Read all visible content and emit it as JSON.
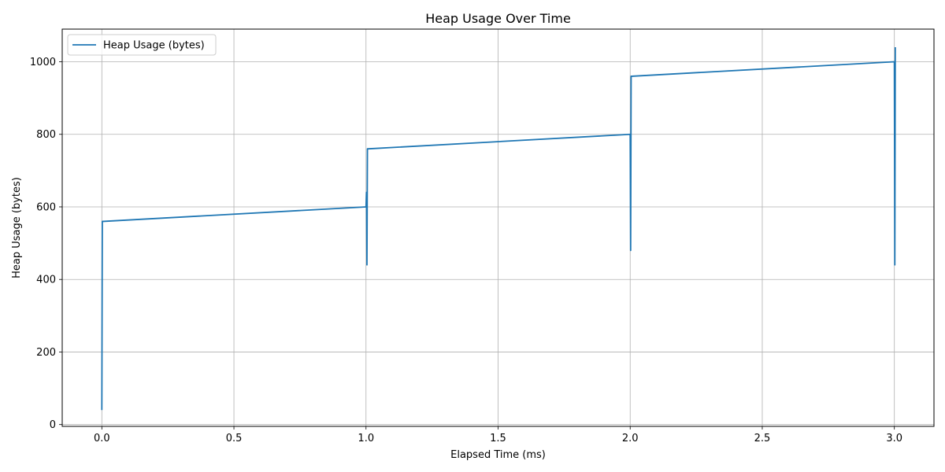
{
  "chart_data": {
    "type": "line",
    "title": "Heap Usage Over Time",
    "xlabel": "Elapsed Time (ms)",
    "ylabel": "Heap Usage (bytes)",
    "xlim": [
      -0.15,
      3.15
    ],
    "ylim": [
      -5,
      1090
    ],
    "xticks": [
      0.0,
      0.5,
      1.0,
      1.5,
      2.0,
      2.5,
      3.0
    ],
    "xtick_labels": [
      "0.0",
      "0.5",
      "1.0",
      "1.5",
      "2.0",
      "2.5",
      "3.0"
    ],
    "yticks": [
      0,
      200,
      400,
      600,
      800,
      1000
    ],
    "ytick_labels": [
      "0",
      "200",
      "400",
      "600",
      "800",
      "1000"
    ],
    "grid": true,
    "legend_position": "top-left",
    "color": "#1f77b4",
    "series": [
      {
        "name": "Heap Usage (bytes)",
        "x": [
          0.0,
          0.0,
          0.0,
          0.0,
          1.0,
          1.0,
          1.0,
          1.0,
          1.0,
          1.0,
          2.0,
          2.0,
          2.0,
          2.0,
          3.0,
          3.0,
          3.0
        ],
        "y": [
          40,
          560,
          560,
          560,
          600,
          640,
          440,
          760,
          760,
          760,
          800,
          480,
          960,
          960,
          1000,
          440,
          1040
        ]
      }
    ]
  }
}
